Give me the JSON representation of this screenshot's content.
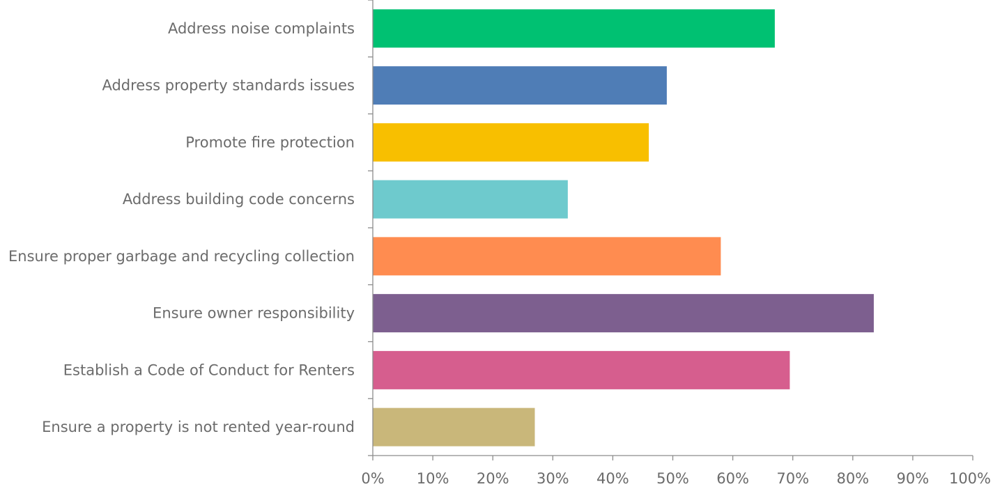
{
  "chart_data": {
    "type": "bar",
    "orientation": "horizontal",
    "title": "",
    "xlabel": "",
    "ylabel": "",
    "xlim": [
      0,
      100
    ],
    "grid": false,
    "legend": "none",
    "x_ticks": [
      "0%",
      "10%",
      "20%",
      "30%",
      "40%",
      "50%",
      "60%",
      "70%",
      "80%",
      "90%",
      "100%"
    ],
    "categories": [
      "Address noise complaints",
      "Address property standards issues",
      "Promote fire protection",
      "Address building code concerns",
      "Ensure proper garbage and recycling collection",
      "Ensure owner responsibility",
      "Establish a Code of Conduct for Renters",
      "Ensure a property is not rented year-round"
    ],
    "values": [
      67,
      49,
      46,
      32.5,
      58,
      83.5,
      69.5,
      27
    ],
    "colors": [
      "#00c172",
      "#4f7db6",
      "#f8bf00",
      "#6ecacd",
      "#ff8c50",
      "#7d5f8f",
      "#d65e8e",
      "#c9b77a"
    ]
  }
}
